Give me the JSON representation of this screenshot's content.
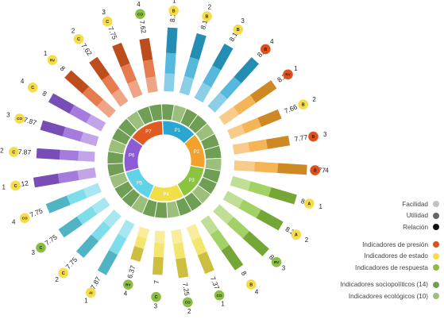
{
  "colors": {
    "P1": "#2aa6d3",
    "P2": "#f2a12c",
    "P3": "#8bc540",
    "P4": "#f1df4a",
    "P5": "#5ed4e6",
    "P6": "#8e5bd6",
    "P7": "#e05a22",
    "badge_presion": "#e0501c",
    "badge_estado": "#f6dc48",
    "badge_respuesta": "#8bbd45",
    "socio": "#6f9f55",
    "eco": "#9cc07b"
  },
  "legend": [
    {
      "label": "Facilidad",
      "color": "#c9bec4"
    },
    {
      "label": "Utilidad",
      "color": "#666666"
    },
    {
      "label": "Relación",
      "color": "#111111"
    },
    {
      "label": "Indicadores de presión",
      "color": "#e0501c"
    },
    {
      "label": "Indicadores de estado",
      "color": "#f6dc48"
    },
    {
      "label": "Indicadores de respuesta",
      "color": "#8bbd45"
    },
    {
      "label": "Indicadores sociopolíticos (14)",
      "color": "#6f9f55"
    },
    {
      "label": "Indicadores ecológicos (10)",
      "color": "#9cc07b"
    }
  ],
  "chart_data": {
    "type": "radial-bar",
    "principles": [
      "P1",
      "P2",
      "P3",
      "P4",
      "P5",
      "P6",
      "P7"
    ],
    "bars": [
      {
        "principle": "P1",
        "num": "1",
        "value": 8.22,
        "label": "8.22",
        "badge": "B",
        "type": "estado"
      },
      {
        "principle": "P1",
        "num": "2",
        "value": 8.11,
        "label": "8.11",
        "badge": "B",
        "type": "estado"
      },
      {
        "principle": "P1",
        "num": "3",
        "value": 8.11,
        "label": "8.11",
        "badge": "B",
        "type": "estado"
      },
      {
        "principle": "P1",
        "num": "4",
        "value": 8.33,
        "label": "8.33",
        "badge": "B",
        "type": "presion"
      },
      {
        "principle": "P2",
        "num": "1",
        "value": 8.22,
        "label": "8.22",
        "badge": "RV",
        "type": "presion"
      },
      {
        "principle": "P2",
        "num": "2",
        "value": 7.66,
        "label": "7.66",
        "badge": "B",
        "type": "estado"
      },
      {
        "principle": "P2",
        "num": "3",
        "value": 7.77,
        "label": "7.77",
        "badge": "B",
        "type": "presion"
      },
      {
        "principle": "P2",
        "num": "4",
        "value": 8.77,
        "label": "8.77",
        "badge": "B",
        "type": "presion"
      },
      {
        "principle": "P3",
        "num": "1",
        "value": 8.4,
        "label": "8.40",
        "badge": "A",
        "type": "estado"
      },
      {
        "principle": "P3",
        "num": "2",
        "value": 8.2,
        "label": "8.20",
        "badge": "A",
        "type": "estado"
      },
      {
        "principle": "P3",
        "num": "3",
        "value": 8.4,
        "label": "8.40",
        "badge": "RV",
        "type": "respuesta"
      },
      {
        "principle": "P3",
        "num": "4",
        "value": 8.0,
        "label": "8",
        "badge": "B",
        "type": "estado"
      },
      {
        "principle": "P4",
        "num": "1",
        "value": 7.37,
        "label": "7.37",
        "badge": "CO",
        "type": "respuesta"
      },
      {
        "principle": "P4",
        "num": "2",
        "value": 7.25,
        "label": "7.25",
        "badge": "CO",
        "type": "respuesta"
      },
      {
        "principle": "P4",
        "num": "3",
        "value": 7.0,
        "label": "7",
        "badge": "C",
        "type": "respuesta"
      },
      {
        "principle": "P4",
        "num": "4",
        "value": 6.37,
        "label": "6.37",
        "badge": "RV",
        "type": "respuesta"
      },
      {
        "principle": "P5",
        "num": "1",
        "value": 7.87,
        "label": "7.87",
        "badge": "AI",
        "type": "estado"
      },
      {
        "principle": "P5",
        "num": "2",
        "value": 7.75,
        "label": "7.75",
        "badge": "C",
        "type": "estado"
      },
      {
        "principle": "P5",
        "num": "3",
        "value": 7.75,
        "label": "7.75",
        "badge": "C",
        "type": "respuesta"
      },
      {
        "principle": "P5",
        "num": "4",
        "value": 7.75,
        "label": "7.75",
        "badge": "CO",
        "type": "estado"
      },
      {
        "principle": "P6",
        "num": "1",
        "value": 8.12,
        "label": "8.12",
        "badge": "C",
        "type": "estado"
      },
      {
        "principle": "P6",
        "num": "2",
        "value": 7.87,
        "label": "7.87",
        "badge": "C",
        "type": "estado"
      },
      {
        "principle": "P6",
        "num": "3",
        "value": 7.87,
        "label": "7.87",
        "badge": "CO",
        "type": "estado"
      },
      {
        "principle": "P6",
        "num": "4",
        "value": 8.0,
        "label": "8",
        "badge": "C",
        "type": "estado"
      },
      {
        "principle": "P7",
        "num": "1",
        "value": 8.0,
        "label": "8",
        "badge": "RV",
        "type": "estado"
      },
      {
        "principle": "P7",
        "num": "2",
        "value": 7.62,
        "label": "7.62",
        "badge": "C",
        "type": "estado"
      },
      {
        "principle": "P7",
        "num": "3",
        "value": 7.75,
        "label": "7.75",
        "badge": "C",
        "type": "estado"
      },
      {
        "principle": "P7",
        "num": "4",
        "value": 7.62,
        "label": "7.62",
        "badge": "CO",
        "type": "respuesta"
      }
    ]
  }
}
